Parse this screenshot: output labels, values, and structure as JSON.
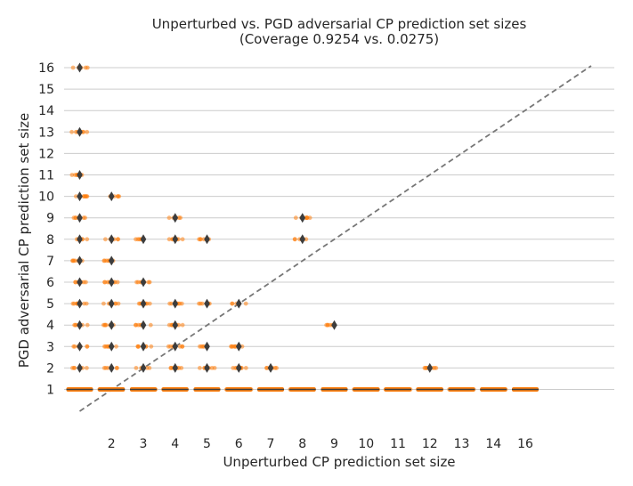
{
  "chart_data": {
    "type": "scatter",
    "title": "Unperturbed vs. PGD adversarial CP prediction set sizes",
    "subtitle": "(Coverage 0.9254 vs. 0.0275)",
    "xlabel": "Unperturbed CP prediction set size",
    "ylabel": "PGD adversarial CP prediction set size",
    "x_categories": [
      "1",
      "2",
      "3",
      "4",
      "5",
      "6",
      "7",
      "8",
      "9",
      "10",
      "11",
      "12",
      "13",
      "14",
      "16"
    ],
    "x_tick_labels": [
      "",
      "2",
      "3",
      "4",
      "5",
      "6",
      "7",
      "8",
      "9",
      "10",
      "11",
      "12",
      "13",
      "14",
      "16"
    ],
    "y_ticks": [
      1,
      2,
      3,
      4,
      5,
      6,
      7,
      8,
      9,
      10,
      11,
      12,
      13,
      14,
      15,
      16
    ],
    "ylim": [
      0,
      17
    ],
    "grid": "horizontal",
    "point_color": "#ff7f0e",
    "marker_color": "#3d3d3d",
    "diagonal_color": "#777777",
    "groups": [
      {
        "x": "1",
        "y_values": [
          1,
          2,
          3,
          4,
          5,
          6,
          7,
          8,
          9,
          10,
          11,
          13,
          16
        ]
      },
      {
        "x": "2",
        "y_values": [
          1,
          2,
          3,
          4,
          5,
          6,
          7,
          8,
          10
        ]
      },
      {
        "x": "3",
        "y_values": [
          1,
          2,
          3,
          4,
          5,
          6,
          8
        ]
      },
      {
        "x": "4",
        "y_values": [
          1,
          2,
          3,
          4,
          5,
          8,
          9
        ]
      },
      {
        "x": "5",
        "y_values": [
          1,
          2,
          3,
          5,
          8
        ]
      },
      {
        "x": "6",
        "y_values": [
          1,
          2,
          3,
          5
        ]
      },
      {
        "x": "7",
        "y_values": [
          1,
          2
        ]
      },
      {
        "x": "8",
        "y_values": [
          1,
          8,
          9
        ]
      },
      {
        "x": "9",
        "y_values": [
          1,
          4
        ]
      },
      {
        "x": "10",
        "y_values": [
          1
        ]
      },
      {
        "x": "11",
        "y_values": [
          1
        ]
      },
      {
        "x": "12",
        "y_values": [
          1,
          2
        ]
      },
      {
        "x": "13",
        "y_values": [
          1
        ]
      },
      {
        "x": "14",
        "y_values": [
          1
        ]
      },
      {
        "x": "16",
        "y_values": [
          1
        ]
      }
    ]
  }
}
